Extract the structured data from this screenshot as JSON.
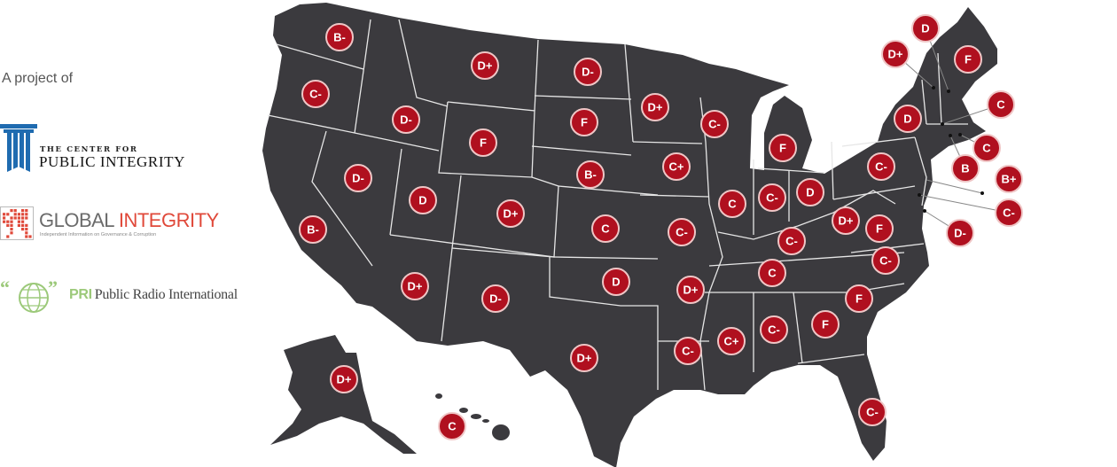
{
  "intro": "A project of",
  "partners": {
    "cpi": {
      "line1": "THE CENTER FOR",
      "line2": "PUBLIC INTEGRITY",
      "color": "#1f6bb0"
    },
    "gi": {
      "word1": "GLOBAL",
      "word2": "INTEGRITY",
      "tagline": "Independent Information on Governance & Corruption",
      "color": "#e0493a"
    },
    "pri": {
      "abbr": "PRI",
      "name": "Public Radio International",
      "color": "#9cc97a"
    }
  },
  "map": {
    "land_color": "#3b3a3e",
    "border_color": "#e6e6e6",
    "badge_color": "#b0101f",
    "grades": [
      "B-",
      "C-",
      "D-",
      "D+",
      "D-",
      "F",
      "F",
      "B-",
      "D-",
      "D",
      "D+",
      "C",
      "B-",
      "D+",
      "C-",
      "F",
      "D",
      "C+",
      "C",
      "C-",
      "D",
      "C-",
      "C-",
      "C-",
      "D+",
      "F",
      "C-",
      "C",
      "D+",
      "D-",
      "D",
      "D+",
      "D+",
      "C-",
      "C+",
      "C-",
      "F",
      "F",
      "C-",
      "D+",
      "C",
      "D",
      "D+",
      "F",
      "C",
      "C",
      "B",
      "B+",
      "C-",
      "D-"
    ]
  }
}
